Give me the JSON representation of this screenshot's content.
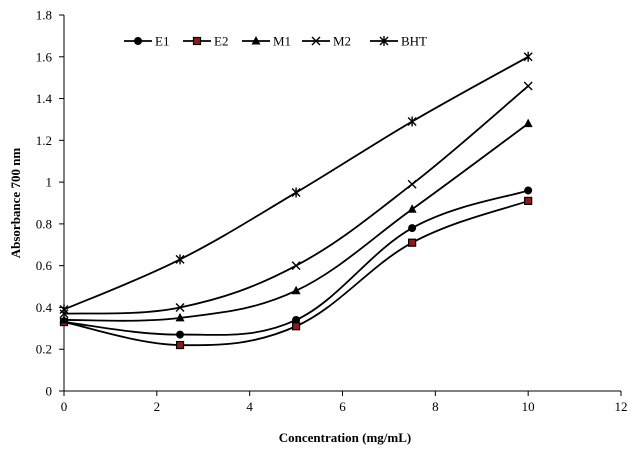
{
  "chart_data": {
    "type": "line",
    "title": "",
    "xlabel": "Concentration (mg/mL)",
    "ylabel": "Absorbance 700 nm",
    "xlim": [
      0,
      12
    ],
    "ylim": [
      0,
      1.8
    ],
    "x_ticks": [
      "0",
      "2",
      "4",
      "6",
      "8",
      "10",
      "12"
    ],
    "y_ticks": [
      "0",
      "0.2",
      "0.4",
      "0.6",
      "0.8",
      "1",
      "1.2",
      "1.4",
      "1.6",
      "1.8"
    ],
    "grid": false,
    "legend_position": "top",
    "x": [
      0,
      2.5,
      5,
      7.5,
      10
    ],
    "series": [
      {
        "name": "E1",
        "marker": "circle",
        "values": [
          0.33,
          0.27,
          0.34,
          0.78,
          0.96
        ]
      },
      {
        "name": "E2",
        "marker": "square",
        "values": [
          0.33,
          0.22,
          0.31,
          0.71,
          0.91
        ]
      },
      {
        "name": "M1",
        "marker": "triangle",
        "values": [
          0.34,
          0.35,
          0.48,
          0.87,
          1.28
        ]
      },
      {
        "name": "M2",
        "marker": "x",
        "values": [
          0.37,
          0.4,
          0.6,
          0.99,
          1.46
        ]
      },
      {
        "name": "BHT",
        "marker": "star",
        "values": [
          0.39,
          0.63,
          0.95,
          1.29,
          1.6
        ]
      }
    ],
    "colors": {
      "line": "#000000",
      "square_fill": "#8b1a1a"
    }
  }
}
